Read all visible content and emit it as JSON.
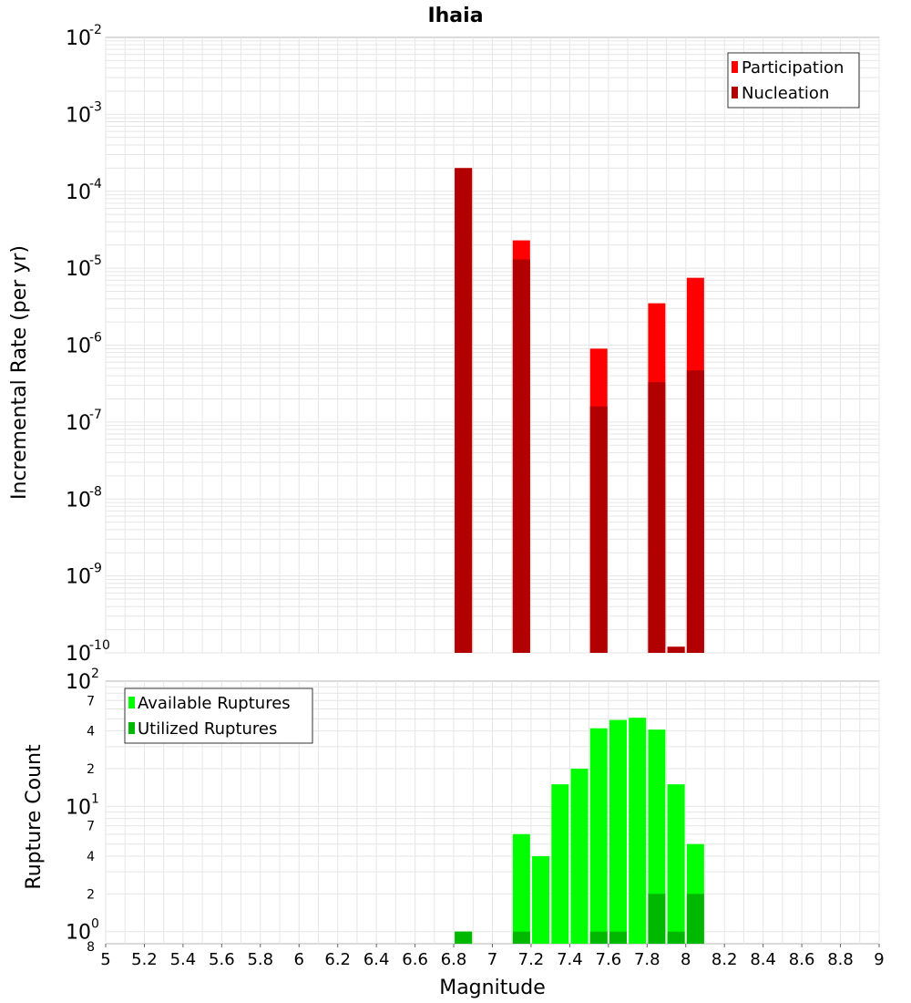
{
  "title": "Ihaia",
  "colors": {
    "participation": "#ff0000",
    "nucleation": "#b20000",
    "available": "#00ff00",
    "utilized": "#00b800",
    "grid": "#e6e6e6",
    "frame": "#b4b4b4"
  },
  "chart_data": [
    {
      "type": "bar",
      "ylabel": "Incremental Rate (per yr)",
      "yscale": "log",
      "ylim": [
        1e-10,
        0.01
      ],
      "xlim": [
        5,
        9
      ],
      "grid": true,
      "legend_position": "top-right",
      "series": [
        {
          "name": "Participation",
          "x": [
            6.85,
            7.15,
            7.55,
            7.85,
            7.95,
            8.05
          ],
          "values": [
            0.0002,
            2.3e-05,
            9e-07,
            3.5e-06,
            1.2e-10,
            7.5e-06
          ]
        },
        {
          "name": "Nucleation",
          "x": [
            6.85,
            7.15,
            7.55,
            7.85,
            7.95,
            8.05
          ],
          "values": [
            0.0002,
            1.3e-05,
            1.6e-07,
            3.3e-07,
            1.2e-10,
            4.7e-07
          ]
        }
      ]
    },
    {
      "type": "bar",
      "xlabel": "Magnitude",
      "ylabel": "Rupture Count",
      "yscale": "log",
      "ylim": [
        0.8,
        100
      ],
      "xlim": [
        5,
        9
      ],
      "grid": true,
      "legend_position": "top-left",
      "xticks": [
        "5",
        "5.2",
        "5.4",
        "5.6",
        "5.8",
        "6",
        "6.2",
        "6.4",
        "6.6",
        "6.8",
        "7",
        "7.2",
        "7.4",
        "7.6",
        "7.8",
        "8",
        "8.2",
        "8.4",
        "8.6",
        "8.8",
        "9"
      ],
      "series": [
        {
          "name": "Available Ruptures",
          "x": [
            6.85,
            7.15,
            7.25,
            7.35,
            7.45,
            7.55,
            7.65,
            7.75,
            7.85,
            7.95,
            8.05
          ],
          "values": [
            1,
            6,
            4,
            15,
            20,
            42,
            49,
            51,
            41,
            15,
            5
          ]
        },
        {
          "name": "Utilized Ruptures",
          "x": [
            6.85,
            7.15,
            7.25,
            7.35,
            7.45,
            7.55,
            7.65,
            7.75,
            7.85,
            7.95,
            8.05
          ],
          "values": [
            1,
            1,
            0,
            0,
            0,
            1,
            1,
            0,
            2,
            1,
            2
          ]
        }
      ]
    }
  ]
}
